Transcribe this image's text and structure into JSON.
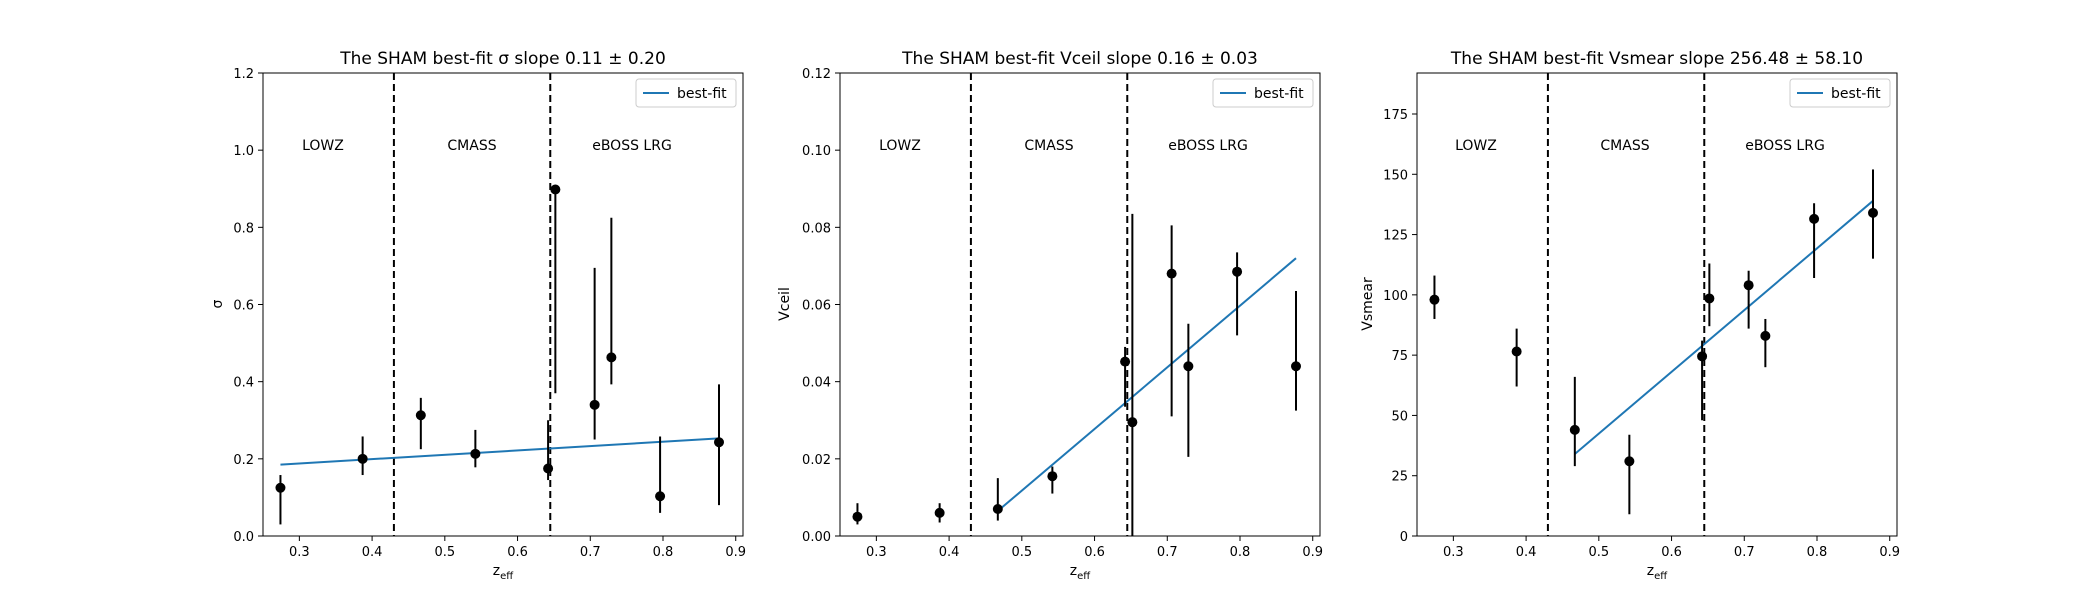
{
  "chart_data": [
    {
      "type": "scatter",
      "title": "The SHAM best-fit σ slope 0.11 ± 0.20",
      "xlabel": "z_eff",
      "ylabel": "σ",
      "xlim": [
        0.25,
        0.91
      ],
      "ylim": [
        0,
        1.2
      ],
      "xticks": [
        "0.3",
        "0.4",
        "0.5",
        "0.6",
        "0.7",
        "0.8",
        "0.9"
      ],
      "yticks": [
        "0.0",
        "0.2",
        "0.4",
        "0.6",
        "0.8",
        "1.0",
        "1.2"
      ],
      "regions": [
        "LOWZ",
        "CMASS",
        "eBOSS LRG"
      ],
      "boundaries": [
        0.43,
        0.645
      ],
      "legend": {
        "label": "best-fit",
        "position": "top-right"
      },
      "points": [
        {
          "x": 0.274,
          "y": 0.125,
          "lo": 0.03,
          "hi": 0.158
        },
        {
          "x": 0.387,
          "y": 0.2,
          "lo": 0.158,
          "hi": 0.258
        },
        {
          "x": 0.467,
          "y": 0.313,
          "lo": 0.225,
          "hi": 0.358
        },
        {
          "x": 0.542,
          "y": 0.213,
          "lo": 0.178,
          "hi": 0.275
        },
        {
          "x": 0.642,
          "y": 0.175,
          "lo": 0.145,
          "hi": 0.3
        },
        {
          "x": 0.652,
          "y": 0.898,
          "lo": 0.37,
          "hi": 0.91
        },
        {
          "x": 0.706,
          "y": 0.34,
          "lo": 0.25,
          "hi": 0.695
        },
        {
          "x": 0.729,
          "y": 0.463,
          "lo": 0.393,
          "hi": 0.825
        },
        {
          "x": 0.796,
          "y": 0.103,
          "lo": 0.06,
          "hi": 0.258
        },
        {
          "x": 0.877,
          "y": 0.243,
          "lo": 0.08,
          "hi": 0.393
        }
      ],
      "fit": {
        "x": [
          0.274,
          0.877
        ],
        "y": [
          0.185,
          0.253
        ],
        "color": "#1f77b4"
      }
    },
    {
      "type": "scatter",
      "title": "The SHAM best-fit Vceil slope 0.16 ± 0.03",
      "xlabel": "z_eff",
      "ylabel": "Vceil",
      "xlim": [
        0.25,
        0.91
      ],
      "ylim": [
        0,
        0.12
      ],
      "xticks": [
        "0.3",
        "0.4",
        "0.5",
        "0.6",
        "0.7",
        "0.8",
        "0.9"
      ],
      "yticks": [
        "0.00",
        "0.02",
        "0.04",
        "0.06",
        "0.08",
        "0.10",
        "0.12"
      ],
      "regions": [
        "LOWZ",
        "CMASS",
        "eBOSS LRG"
      ],
      "boundaries": [
        0.43,
        0.645
      ],
      "legend": {
        "label": "best-fit",
        "position": "top-right"
      },
      "points": [
        {
          "x": 0.274,
          "y": 0.005,
          "lo": 0.003,
          "hi": 0.0085
        },
        {
          "x": 0.387,
          "y": 0.006,
          "lo": 0.0035,
          "hi": 0.0085
        },
        {
          "x": 0.467,
          "y": 0.007,
          "lo": 0.004,
          "hi": 0.015
        },
        {
          "x": 0.542,
          "y": 0.0155,
          "lo": 0.011,
          "hi": 0.018
        },
        {
          "x": 0.642,
          "y": 0.0452,
          "lo": 0.0335,
          "hi": 0.049
        },
        {
          "x": 0.652,
          "y": 0.0295,
          "lo": 0.0,
          "hi": 0.0835
        },
        {
          "x": 0.706,
          "y": 0.068,
          "lo": 0.031,
          "hi": 0.0805
        },
        {
          "x": 0.729,
          "y": 0.044,
          "lo": 0.0205,
          "hi": 0.055
        },
        {
          "x": 0.796,
          "y": 0.0685,
          "lo": 0.052,
          "hi": 0.0735
        },
        {
          "x": 0.877,
          "y": 0.044,
          "lo": 0.0325,
          "hi": 0.0635
        }
      ],
      "fit": {
        "x": [
          0.467,
          0.877
        ],
        "y": [
          0.0065,
          0.072
        ],
        "color": "#1f77b4"
      }
    },
    {
      "type": "scatter",
      "title": "The SHAM best-fit Vsmear slope 256.48 ± 58.10",
      "xlabel": "z_eff",
      "ylabel": "Vsmear",
      "xlim": [
        0.25,
        0.91
      ],
      "ylim": [
        0,
        192
      ],
      "xticks": [
        "0.3",
        "0.4",
        "0.5",
        "0.6",
        "0.7",
        "0.8",
        "0.9"
      ],
      "yticks": [
        "0",
        "25",
        "50",
        "75",
        "100",
        "125",
        "150",
        "175"
      ],
      "regions": [
        "LOWZ",
        "CMASS",
        "eBOSS LRG"
      ],
      "boundaries": [
        0.43,
        0.645
      ],
      "legend": {
        "label": "best-fit",
        "position": "top-right"
      },
      "points": [
        {
          "x": 0.274,
          "y": 98,
          "lo": 90,
          "hi": 108
        },
        {
          "x": 0.387,
          "y": 76.5,
          "lo": 62,
          "hi": 86
        },
        {
          "x": 0.467,
          "y": 44,
          "lo": 29,
          "hi": 66
        },
        {
          "x": 0.542,
          "y": 31,
          "lo": 9,
          "hi": 42
        },
        {
          "x": 0.642,
          "y": 74.5,
          "lo": 48,
          "hi": 81
        },
        {
          "x": 0.652,
          "y": 98.5,
          "lo": 87,
          "hi": 113
        },
        {
          "x": 0.706,
          "y": 104,
          "lo": 86,
          "hi": 110
        },
        {
          "x": 0.729,
          "y": 83,
          "lo": 70,
          "hi": 90
        },
        {
          "x": 0.796,
          "y": 131.5,
          "lo": 107,
          "hi": 138
        },
        {
          "x": 0.877,
          "y": 134,
          "lo": 115,
          "hi": 152
        }
      ],
      "fit": {
        "x": [
          0.467,
          0.877
        ],
        "y": [
          34,
          139
        ],
        "color": "#1f77b4"
      }
    }
  ]
}
